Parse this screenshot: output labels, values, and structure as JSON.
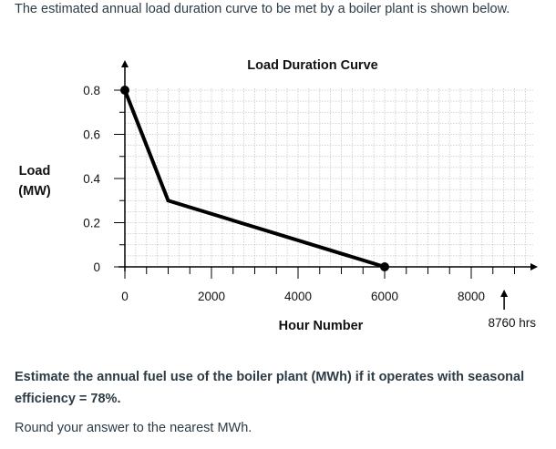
{
  "intro_text": "The estimated annual load duration curve to be met by a boiler plant is shown below.",
  "question": {
    "line1": "Estimate the annual fuel use of the boiler plant (MWh) if it operates with seasonal",
    "line2": "efficiency = 78%."
  },
  "instruction": "Round your answer to the nearest MWh.",
  "chart_data": {
    "type": "line",
    "title": "Load Duration Curve",
    "xlabel": "Hour Number",
    "ylabel_line1": "Load",
    "ylabel_line2": "(MW)",
    "x_end_label": "8760 hrs",
    "xlim": [
      0,
      8760
    ],
    "ylim": [
      0,
      0.8
    ],
    "x_ticks": [
      0,
      2000,
      4000,
      6000,
      8000
    ],
    "x_tick_labels": [
      "0",
      "2000",
      "4000",
      "6000",
      "8000"
    ],
    "y_ticks": [
      0,
      0.2,
      0.4,
      0.6,
      0.8
    ],
    "y_tick_labels": [
      "0",
      "0.2",
      "0.4",
      "0.6",
      "0.8"
    ],
    "grid": true,
    "series": [
      {
        "x": [
          0,
          1000,
          6000
        ],
        "y": [
          0.8,
          0.3,
          0
        ]
      }
    ],
    "line_color": "#000000",
    "grid_color": "#c8c8c8"
  }
}
